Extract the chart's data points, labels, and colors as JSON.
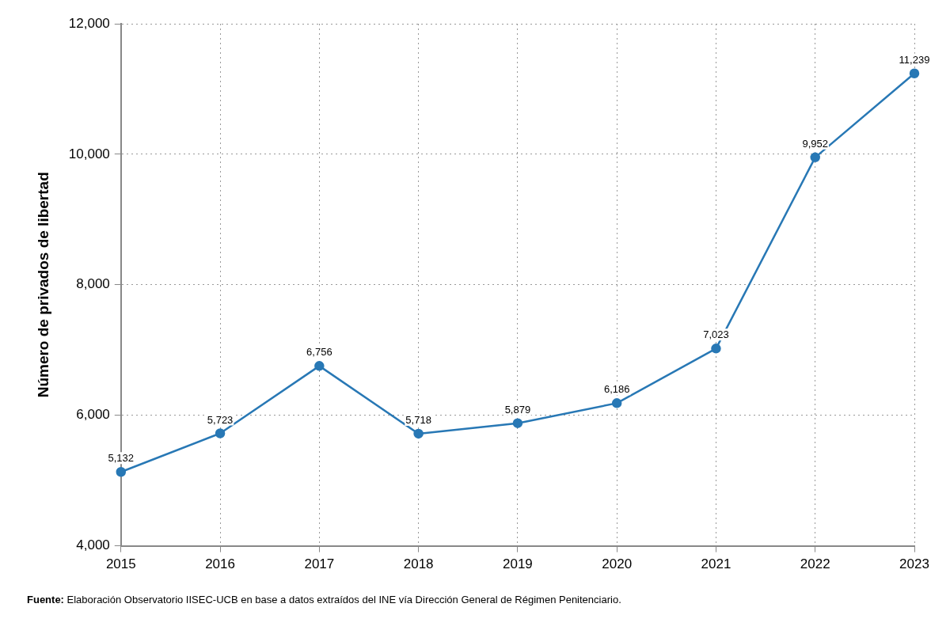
{
  "chart_data": {
    "type": "line",
    "ylabel": "Número de privados de libertad",
    "categories": [
      "2015",
      "2016",
      "2017",
      "2018",
      "2019",
      "2020",
      "2021",
      "2022",
      "2023"
    ],
    "series": [
      {
        "color": "#2878b5",
        "values": [
          5132,
          5723,
          6756,
          5718,
          5879,
          6186,
          7023,
          9952,
          11239
        ],
        "value_labels": [
          "5,132",
          "5,723",
          "6,756",
          "5,718",
          "5,879",
          "6,186",
          "7,023",
          "9,952",
          "11,239"
        ]
      }
    ],
    "ylim": [
      4000,
      12000
    ],
    "yticks": [
      {
        "value": 4000,
        "label": "4,000"
      },
      {
        "value": 6000,
        "label": "6,000"
      },
      {
        "value": 8000,
        "label": "8,000"
      },
      {
        "value": 10000,
        "label": "10,000"
      },
      {
        "value": 12000,
        "label": "12,000"
      }
    ],
    "grid": true,
    "legend": false,
    "marker": "circle",
    "line_style": "solid",
    "annotations": [
      "Fuente: Elaboración Observatorio IISEC-UCB en base a datos extraídos del INE vía Dirección General de Régimen Penitenciario."
    ]
  }
}
